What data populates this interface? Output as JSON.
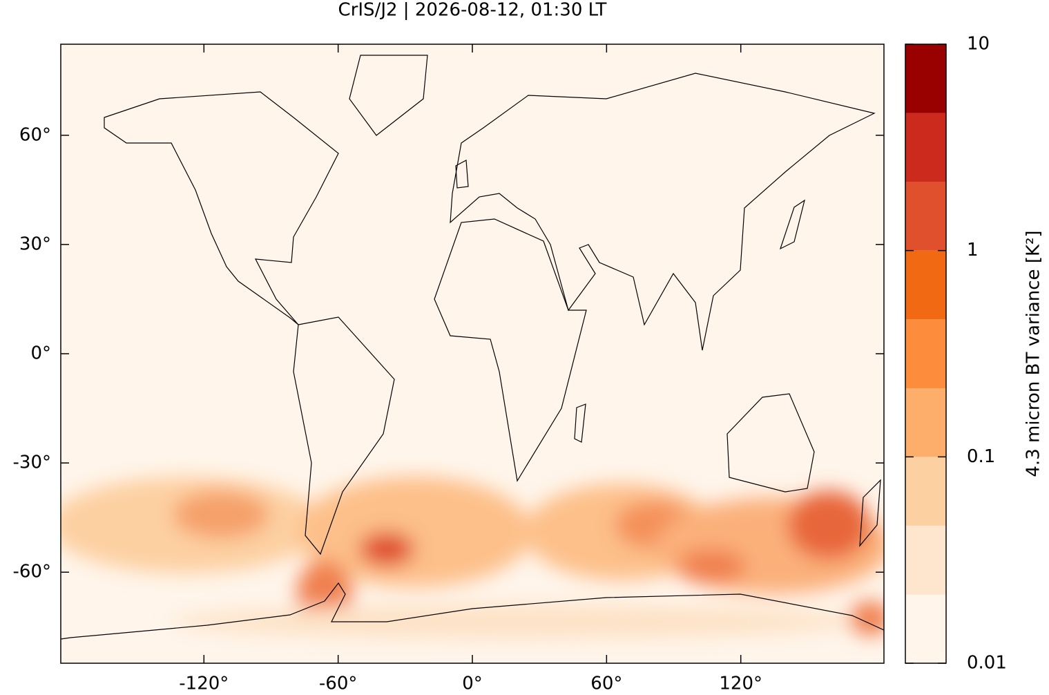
{
  "chart_data": {
    "type": "map",
    "title": "CrIS/J2 | 2026-08-12, 01:30 LT",
    "xlim": [
      -184,
      184
    ],
    "ylim": [
      -85,
      85
    ],
    "xticks": [
      {
        "value": -120,
        "label": "-120°"
      },
      {
        "value": -60,
        "label": "-60°"
      },
      {
        "value": 0,
        "label": "0°"
      },
      {
        "value": 60,
        "label": "60°"
      },
      {
        "value": 120,
        "label": "120°"
      }
    ],
    "yticks": [
      {
        "value": -60,
        "label": "-60°"
      },
      {
        "value": -30,
        "label": "-30°"
      },
      {
        "value": 0,
        "label": "0°"
      },
      {
        "value": 30,
        "label": "30°"
      },
      {
        "value": 60,
        "label": "60°"
      }
    ],
    "colorbar": {
      "label": "4.3 micron BT variance [K²]",
      "log_scale": true,
      "lim": [
        0.01,
        10
      ],
      "ticks": [
        0.01,
        0.1,
        1,
        10
      ],
      "levels": [
        0.01,
        0.0215,
        0.0464,
        0.1,
        0.215,
        0.464,
        1,
        2.15,
        4.64,
        10
      ],
      "colors": [
        "#fff5eb",
        "#fee6ce",
        "#fdd0a2",
        "#fdae6b",
        "#fd8d3c",
        "#f16913",
        "#e0502d",
        "#cb2a1c",
        "#990000"
      ]
    }
  }
}
